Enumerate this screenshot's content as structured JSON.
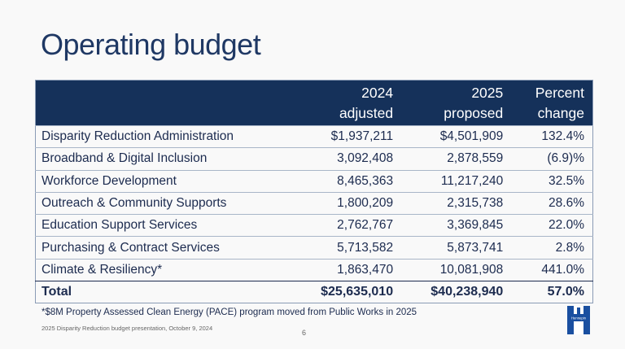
{
  "title": "Operating budget",
  "table": {
    "headers": [
      [
        "",
        ""
      ],
      [
        "2024",
        "adjusted"
      ],
      [
        "2025",
        "proposed"
      ],
      [
        "Percent",
        "change"
      ]
    ],
    "rows": [
      [
        "Disparity Reduction Administration",
        "$1,937,211",
        "$4,501,909",
        "132.4%"
      ],
      [
        "Broadband & Digital Inclusion",
        "3,092,408",
        "2,878,559",
        "(6.9)%"
      ],
      [
        "Workforce Development",
        "8,465,363",
        "11,217,240",
        "32.5%"
      ],
      [
        "Outreach & Community Supports",
        "1,800,209",
        "2,315,738",
        "28.6%"
      ],
      [
        "Education Support Services",
        "2,762,767",
        "3,369,845",
        "22.0%"
      ],
      [
        "Purchasing & Contract Services",
        "5,713,582",
        "5,873,741",
        "2.8%"
      ],
      [
        "Climate & Resiliency*",
        "1,863,470",
        "10,081,908",
        "441.0%"
      ],
      [
        "Total",
        "$25,635,010",
        "$40,238,940",
        "57.0%"
      ]
    ]
  },
  "footnote": "*$8M Property Assessed Clean Energy (PACE) program moved from Public Works in 2025",
  "subtitle": "2025 Disparity Reduction budget presentation, October 9, 2024",
  "page_number": "6",
  "logo_text": "Hennepin"
}
